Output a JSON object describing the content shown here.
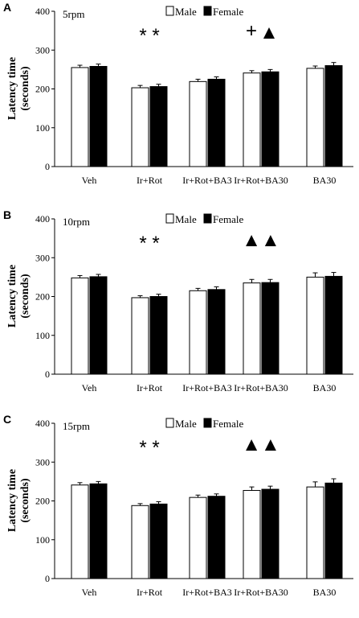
{
  "panels": [
    {
      "letter": "A",
      "title": "5rpm",
      "ylabel": "Latency time",
      "ylabel2": "(seconds)",
      "legend_male": "Male",
      "legend_female": "Female",
      "annotations": [
        {
          "cat": 1,
          "text": "* *"
        },
        {
          "cat": 3,
          "text": "+"
        },
        {
          "cat": 3,
          "text": "▲"
        }
      ]
    },
    {
      "letter": "B",
      "title": "10rpm",
      "ylabel": "Latency time",
      "ylabel2": "(seconds)",
      "legend_male": "Male",
      "legend_female": "Female",
      "annotations": [
        {
          "cat": 1,
          "text": "* *"
        },
        {
          "cat": 3,
          "text": "▲▲"
        }
      ]
    },
    {
      "letter": "C",
      "title": "15rpm",
      "ylabel": "Latency time",
      "ylabel2": "(seconds)",
      "legend_male": "Male",
      "legend_female": "Female",
      "annotations": [
        {
          "cat": 1,
          "text": "* *"
        },
        {
          "cat": 3,
          "text": "▲▲"
        }
      ]
    }
  ],
  "colors": {
    "male": "#ffffff",
    "female": "#000000",
    "axis": "#000000"
  },
  "chart_data": [
    {
      "type": "bar",
      "title": "5rpm",
      "ylabel": "Latency time (seconds)",
      "ylim": [
        0,
        400
      ],
      "yticks": [
        0,
        100,
        200,
        300,
        400
      ],
      "categories": [
        "Veh",
        "Ir+Rot",
        "Ir+Rot+BA3",
        "Ir+Rot+BA30",
        "BA30"
      ],
      "series": [
        {
          "name": "Male",
          "values": [
            255,
            203,
            219,
            241,
            253
          ],
          "errors": [
            6,
            6,
            6,
            6,
            6
          ]
        },
        {
          "name": "Female",
          "values": [
            258,
            206,
            225,
            244,
            260
          ],
          "errors": [
            6,
            6,
            6,
            6,
            8
          ]
        }
      ]
    },
    {
      "type": "bar",
      "title": "10rpm",
      "ylabel": "Latency time (seconds)",
      "ylim": [
        0,
        400
      ],
      "yticks": [
        0,
        100,
        200,
        300,
        400
      ],
      "categories": [
        "Veh",
        "Ir+Rot",
        "Ir+Rot+BA3",
        "Ir+Rot+BA30",
        "BA30"
      ],
      "series": [
        {
          "name": "Male",
          "values": [
            248,
            197,
            215,
            235,
            250
          ],
          "errors": [
            6,
            5,
            6,
            9,
            11
          ]
        },
        {
          "name": "Female",
          "values": [
            251,
            200,
            218,
            236,
            252
          ],
          "errors": [
            6,
            6,
            7,
            8,
            10
          ]
        }
      ]
    },
    {
      "type": "bar",
      "title": "15rpm",
      "ylabel": "Latency time (seconds)",
      "ylim": [
        0,
        400
      ],
      "yticks": [
        0,
        100,
        200,
        300,
        400
      ],
      "categories": [
        "Veh",
        "Ir+Rot",
        "Ir+Rot+BA3",
        "Ir+Rot+BA30",
        "BA30"
      ],
      "series": [
        {
          "name": "Male",
          "values": [
            241,
            188,
            209,
            227,
            236
          ],
          "errors": [
            6,
            5,
            6,
            9,
            13
          ]
        },
        {
          "name": "Female",
          "values": [
            244,
            192,
            212,
            230,
            246
          ],
          "errors": [
            6,
            6,
            6,
            8,
            11
          ]
        }
      ]
    }
  ]
}
